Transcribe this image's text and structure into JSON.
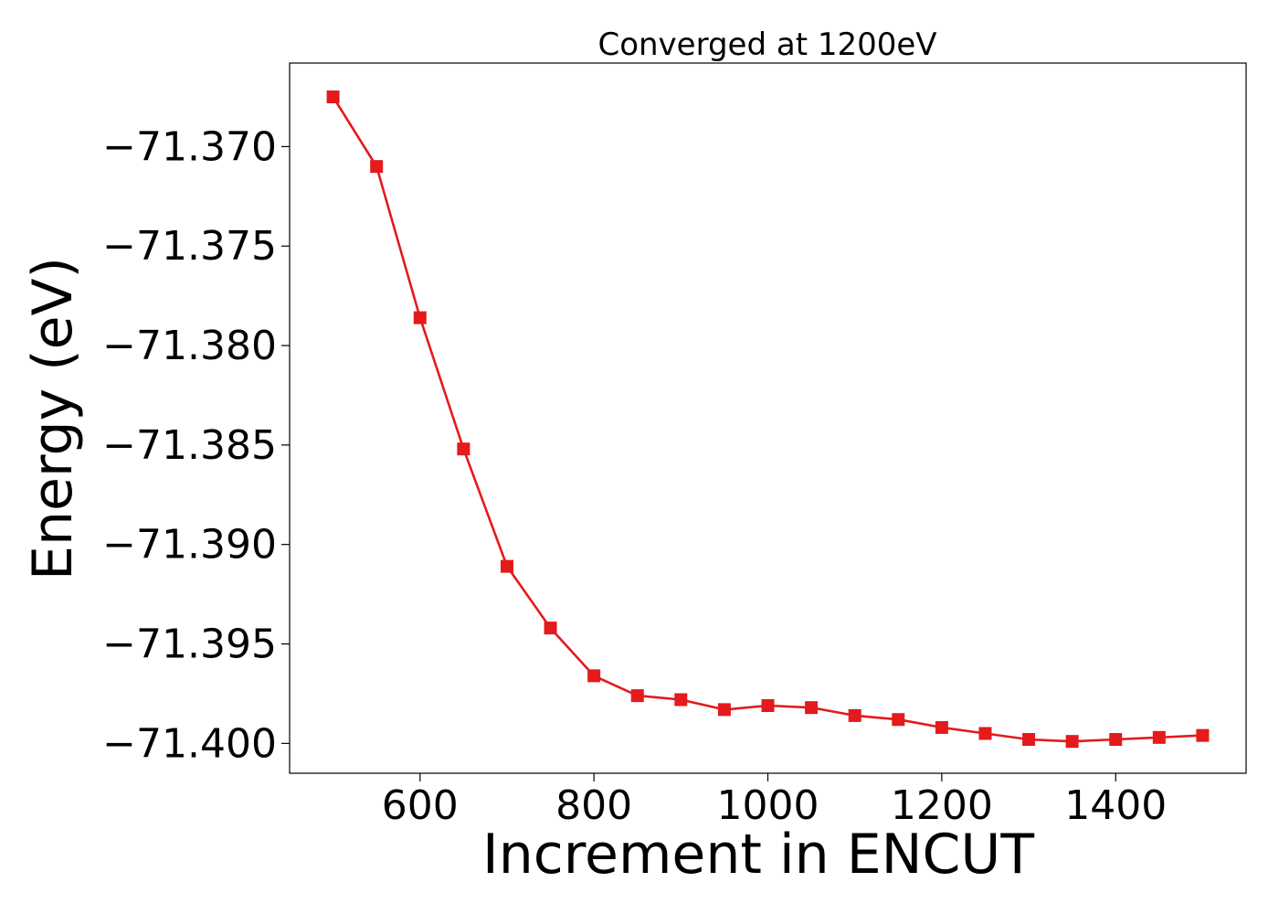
{
  "chart_data": {
    "type": "line",
    "title": "Converged at 1200eV",
    "xlabel": "Increment in ENCUT",
    "ylabel": "Energy (eV)",
    "xlim": [
      450,
      1550
    ],
    "ylim": [
      -71.4015,
      -71.3658
    ],
    "xticks": [
      600,
      800,
      1000,
      1200,
      1400
    ],
    "xtick_labels": [
      "600",
      "800",
      "1000",
      "1200",
      "1400"
    ],
    "yticks": [
      -71.37,
      -71.375,
      -71.38,
      -71.385,
      -71.39,
      -71.395,
      -71.4
    ],
    "ytick_labels": [
      "−71.370",
      "−71.375",
      "−71.380",
      "−71.385",
      "−71.390",
      "−71.395",
      "−71.400"
    ],
    "grid": false,
    "series": [
      {
        "color": "#e41a1c",
        "marker": "square",
        "x": [
          500,
          550,
          600,
          650,
          700,
          750,
          800,
          850,
          900,
          950,
          1000,
          1050,
          1100,
          1150,
          1200,
          1250,
          1300,
          1350,
          1400,
          1450,
          1500
        ],
        "y": [
          -71.3675,
          -71.371,
          -71.3786,
          -71.3852,
          -71.3911,
          -71.3942,
          -71.3966,
          -71.3976,
          -71.3978,
          -71.3983,
          -71.3981,
          -71.3982,
          -71.3986,
          -71.3988,
          -71.3992,
          -71.3995,
          -71.3998,
          -71.3999,
          -71.3998,
          -71.3997,
          -71.3996
        ]
      }
    ]
  }
}
